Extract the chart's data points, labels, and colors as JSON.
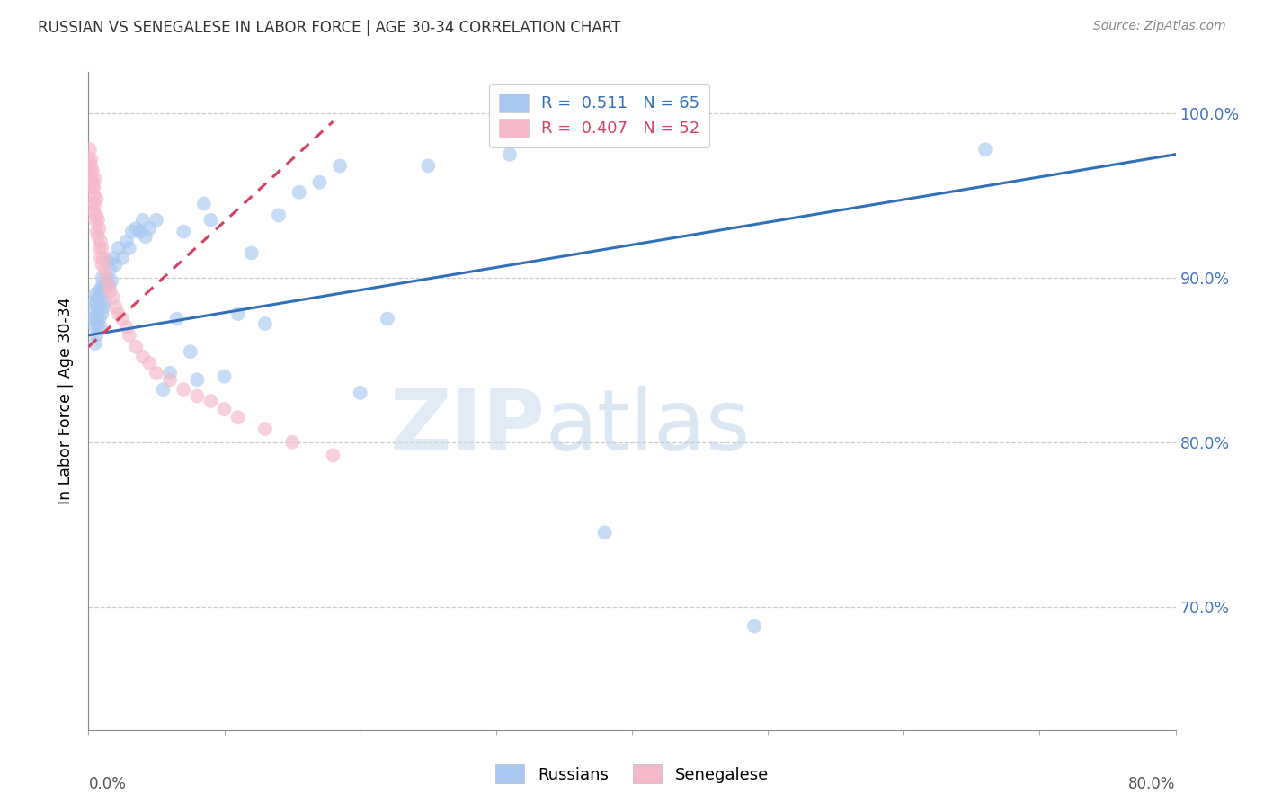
{
  "title": "RUSSIAN VS SENEGALESE IN LABOR FORCE | AGE 30-34 CORRELATION CHART",
  "source": "Source: ZipAtlas.com",
  "ylabel": "In Labor Force | Age 30-34",
  "ytick_labels": [
    "70.0%",
    "80.0%",
    "90.0%",
    "100.0%"
  ],
  "ytick_values": [
    0.7,
    0.8,
    0.9,
    1.0
  ],
  "xmin": 0.0,
  "xmax": 0.8,
  "ymin": 0.625,
  "ymax": 1.025,
  "legend_r_label": "R =  0.511   N = 65",
  "legend_s_label": "R =  0.407   N = 52",
  "watermark_zip": "ZIP",
  "watermark_atlas": "atlas",
  "russian_color": "#a8c8f0",
  "senegalese_color": "#f4b8c8",
  "russian_trend_color": "#3070b8",
  "senegalese_trend_color": "#d84060",
  "russian_scatter_x": [
    0.003,
    0.004,
    0.004,
    0.005,
    0.005,
    0.005,
    0.006,
    0.006,
    0.006,
    0.007,
    0.007,
    0.007,
    0.008,
    0.008,
    0.008,
    0.009,
    0.009,
    0.01,
    0.01,
    0.01,
    0.011,
    0.011,
    0.012,
    0.012,
    0.013,
    0.014,
    0.015,
    0.016,
    0.017,
    0.018,
    0.02,
    0.022,
    0.025,
    0.028,
    0.03,
    0.032,
    0.035,
    0.038,
    0.04,
    0.042,
    0.045,
    0.05,
    0.055,
    0.06,
    0.065,
    0.07,
    0.075,
    0.08,
    0.085,
    0.09,
    0.1,
    0.11,
    0.12,
    0.13,
    0.14,
    0.155,
    0.17,
    0.185,
    0.2,
    0.22,
    0.25,
    0.31,
    0.38,
    0.49,
    0.66
  ],
  "russian_scatter_y": [
    0.875,
    0.88,
    0.885,
    0.87,
    0.89,
    0.86,
    0.875,
    0.885,
    0.865,
    0.88,
    0.87,
    0.888,
    0.875,
    0.892,
    0.882,
    0.87,
    0.888,
    0.878,
    0.895,
    0.9,
    0.882,
    0.892,
    0.885,
    0.895,
    0.9,
    0.91,
    0.895,
    0.905,
    0.898,
    0.912,
    0.908,
    0.918,
    0.912,
    0.922,
    0.918,
    0.928,
    0.93,
    0.928,
    0.935,
    0.925,
    0.93,
    0.935,
    0.832,
    0.842,
    0.875,
    0.928,
    0.855,
    0.838,
    0.945,
    0.935,
    0.84,
    0.878,
    0.915,
    0.872,
    0.938,
    0.952,
    0.958,
    0.968,
    0.83,
    0.875,
    0.968,
    0.975,
    0.745,
    0.688,
    0.978
  ],
  "senegalese_scatter_x": [
    0.001,
    0.001,
    0.001,
    0.002,
    0.002,
    0.002,
    0.002,
    0.003,
    0.003,
    0.003,
    0.003,
    0.004,
    0.004,
    0.004,
    0.005,
    0.005,
    0.005,
    0.006,
    0.006,
    0.006,
    0.007,
    0.007,
    0.008,
    0.008,
    0.009,
    0.009,
    0.01,
    0.01,
    0.011,
    0.012,
    0.013,
    0.015,
    0.016,
    0.018,
    0.02,
    0.022,
    0.025,
    0.028,
    0.03,
    0.035,
    0.04,
    0.045,
    0.05,
    0.06,
    0.07,
    0.08,
    0.09,
    0.1,
    0.11,
    0.13,
    0.15,
    0.18
  ],
  "senegalese_scatter_y": [
    0.978,
    0.97,
    0.965,
    0.968,
    0.958,
    0.972,
    0.96,
    0.965,
    0.955,
    0.945,
    0.958,
    0.95,
    0.94,
    0.955,
    0.945,
    0.935,
    0.96,
    0.938,
    0.948,
    0.928,
    0.935,
    0.925,
    0.93,
    0.918,
    0.922,
    0.912,
    0.918,
    0.908,
    0.912,
    0.905,
    0.9,
    0.895,
    0.892,
    0.888,
    0.882,
    0.878,
    0.875,
    0.87,
    0.865,
    0.858,
    0.852,
    0.848,
    0.842,
    0.838,
    0.832,
    0.828,
    0.825,
    0.82,
    0.815,
    0.808,
    0.8,
    0.792
  ]
}
